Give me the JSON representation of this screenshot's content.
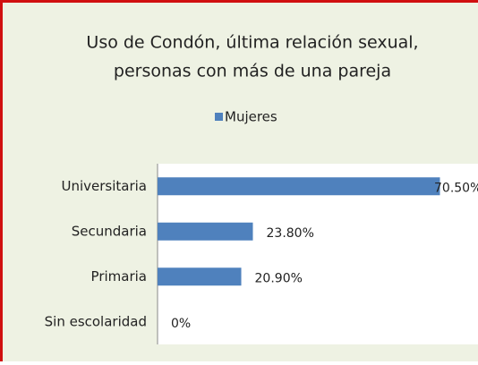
{
  "chart_data": {
    "type": "bar",
    "orientation": "horizontal",
    "title": [
      "Uso de Condón, última relación sexual,",
      "personas con más de una pareja"
    ],
    "categories": [
      "Universitaria",
      "Secundaria",
      "Primaria",
      "Sin escolaridad"
    ],
    "series": [
      {
        "name": "Mujeres",
        "color": "#4f81bd",
        "values": [
          70.5,
          23.8,
          20.9,
          0
        ],
        "value_labels": [
          "70.50%",
          "23.80%",
          "20.90%",
          "0%"
        ]
      }
    ],
    "xlim": [
      0,
      80
    ],
    "legend": "top"
  }
}
